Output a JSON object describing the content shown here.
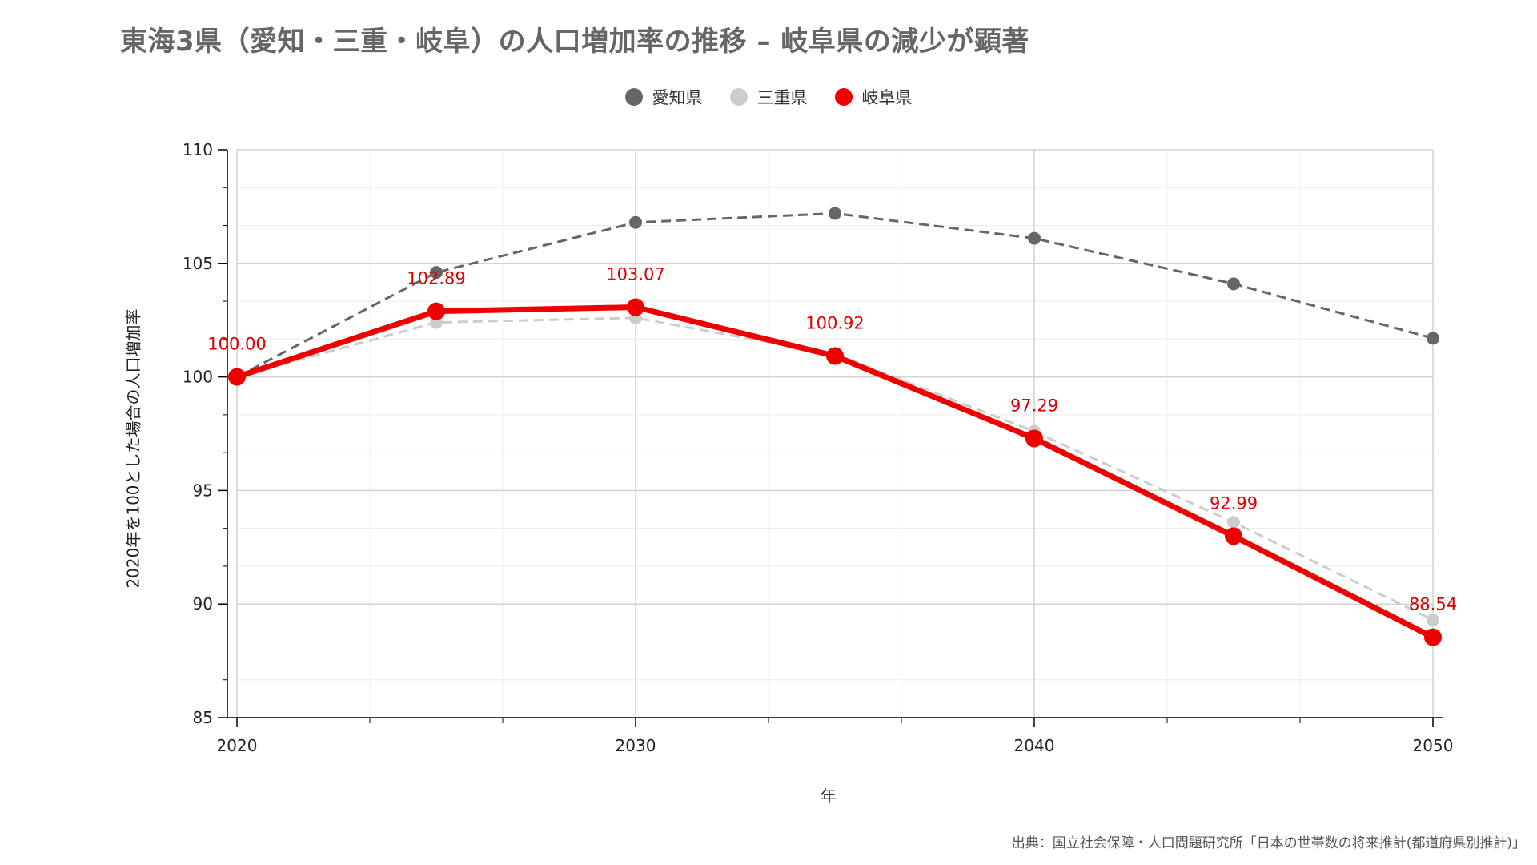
{
  "title": "東海3県（愛知・三重・岐阜）の人口増加率の推移 – 岐阜県の減少が顕著",
  "source": "出典：国立社会保障・人口問題研究所「日本の世帯数の将来推計(都道府県別推計)」",
  "chart_data": {
    "type": "line",
    "xlabel": "年",
    "ylabel": "2020年を100とした場合の人口増加率",
    "x": [
      2020,
      2025,
      2030,
      2035,
      2040,
      2045,
      2050
    ],
    "xticks": [
      "2020",
      "2030",
      "2040",
      "2050"
    ],
    "yticks": [
      "85",
      "90",
      "95",
      "100",
      "105",
      "110"
    ],
    "xlim": [
      2020,
      2050
    ],
    "ylim": [
      85,
      110
    ],
    "grid": true,
    "legend_position": "top-center",
    "series": [
      {
        "name": "愛知県",
        "values": [
          100.0,
          104.6,
          106.8,
          107.2,
          106.1,
          104.1,
          101.7
        ],
        "color": "#666666",
        "style": "dashed"
      },
      {
        "name": "三重県",
        "values": [
          100.0,
          102.4,
          102.6,
          101.0,
          97.6,
          93.6,
          89.3
        ],
        "color": "#cccccc",
        "style": "dashed"
      },
      {
        "name": "岐阜県",
        "values": [
          100.0,
          102.89,
          103.07,
          100.92,
          97.29,
          92.99,
          88.54
        ],
        "color": "#ee0000",
        "style": "solid"
      }
    ],
    "data_labels": [
      "100.00",
      "102.89",
      "103.07",
      "100.92",
      "97.29",
      "92.99",
      "88.54"
    ]
  }
}
